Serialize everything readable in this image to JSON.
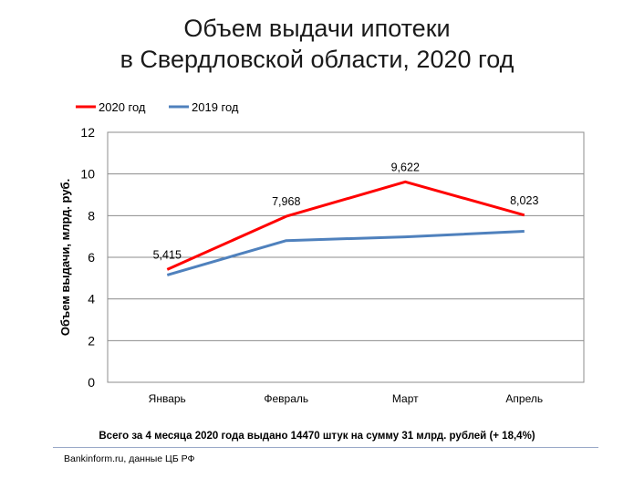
{
  "title_lines": [
    "Объем выдачи ипотеки",
    "в Свердловской области, 2020 год"
  ],
  "footnote": "Всего за 4 месяца 2020 года выдано 14470 штук на сумму 31 млрд. рублей (+ 18,4%)",
  "source": "Bankinform.ru, данные ЦБ РФ",
  "chart_data": {
    "type": "line",
    "title": "Объем выдачи ипотеки в Свердловской области, 2020 год",
    "xlabel": "",
    "ylabel": "Объем выдачи, млрд. руб.",
    "categories": [
      "Январь",
      "Февраль",
      "Март",
      "Апрель"
    ],
    "ylim": [
      0,
      12
    ],
    "yticks": [
      0,
      2,
      4,
      6,
      8,
      10,
      12
    ],
    "grid": true,
    "legend_position": "top-left",
    "series": [
      {
        "name": "2020 год",
        "color": "#ff0000",
        "values": [
          5.415,
          7.968,
          9.622,
          8.023
        ],
        "data_labels": [
          "5,415",
          "7,968",
          "9,622",
          "8,023"
        ]
      },
      {
        "name": "2019 год",
        "color": "#4f81bd",
        "values": [
          5.15,
          6.8,
          6.98,
          7.25
        ]
      }
    ]
  }
}
